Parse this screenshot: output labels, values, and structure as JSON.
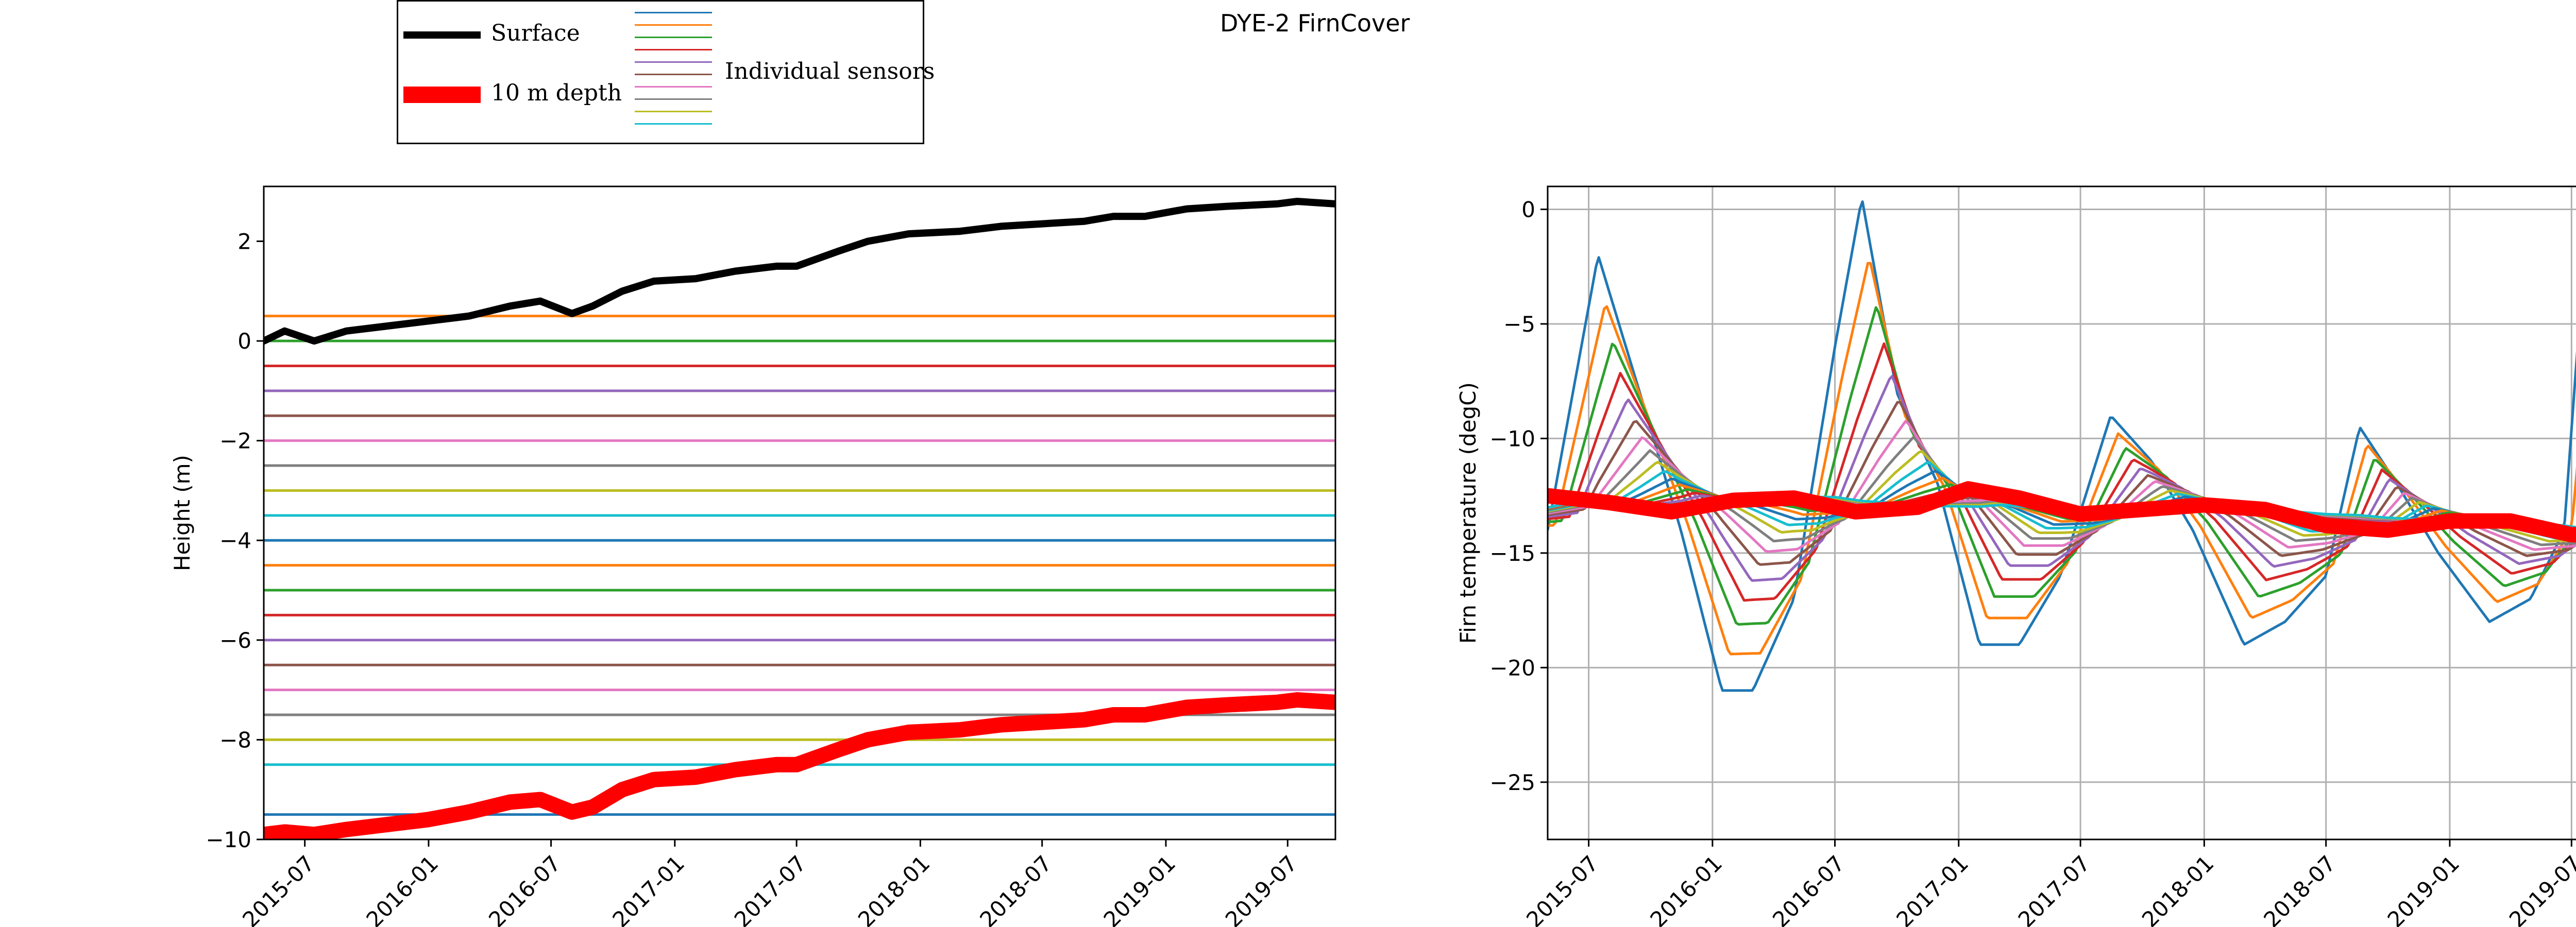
{
  "suptitle": "DYE-2 FirnCover",
  "legend": {
    "surface_label": "Surface",
    "depth_label": "10 m depth",
    "sensors_label": "Individual sensors",
    "surface_color": "#000000",
    "depth_color": "#ff0000",
    "sensor_colors": [
      "#1f77b4",
      "#ff7f0e",
      "#2ca02c",
      "#d62728",
      "#9467bd",
      "#8c564b",
      "#e377c2",
      "#7f7f7f",
      "#bcbd22",
      "#17becf"
    ]
  },
  "chart_data": [
    {
      "type": "line",
      "panel": "left",
      "title": "",
      "xlabel": "",
      "ylabel": "Height (m)",
      "xlim": [
        "2015-05-01",
        "2019-09-10"
      ],
      "ylim": [
        -10,
        3.1
      ],
      "xticks": [
        "2015-07",
        "2016-01",
        "2016-07",
        "2017-01",
        "2017-07",
        "2018-01",
        "2018-07",
        "2019-01",
        "2019-07"
      ],
      "yticks": [
        "−10",
        "−8",
        "−6",
        "−4",
        "−2",
        "0",
        "2"
      ],
      "sensor_depths": [
        0.5,
        0,
        -0.5,
        -1,
        -1.5,
        -2,
        -2.5,
        -3,
        -3.5,
        -4,
        -4.5,
        -5,
        -5.5,
        -6,
        -6.5,
        -7,
        -7.5,
        -8,
        -8.5,
        -9.5
      ],
      "series": [
        {
          "name": "Surface",
          "color": "#000000",
          "x": [
            "2015-05-01",
            "2015-06-01",
            "2015-07-15",
            "2015-09-01",
            "2015-11-01",
            "2016-01-01",
            "2016-03-01",
            "2016-05-01",
            "2016-06-15",
            "2016-08-01",
            "2016-09-01",
            "2016-10-15",
            "2016-12-01",
            "2017-02-01",
            "2017-04-01",
            "2017-06-01",
            "2017-07-01",
            "2017-09-01",
            "2017-10-15",
            "2017-12-15",
            "2018-03-01",
            "2018-05-01",
            "2018-07-01",
            "2018-09-01",
            "2018-10-15",
            "2018-12-01",
            "2019-02-01",
            "2019-04-01",
            "2019-06-15",
            "2019-07-15",
            "2019-09-10"
          ],
          "y": [
            0.0,
            0.2,
            0.0,
            0.2,
            0.3,
            0.4,
            0.5,
            0.7,
            0.8,
            0.55,
            0.7,
            1.0,
            1.2,
            1.25,
            1.4,
            1.5,
            1.5,
            1.8,
            2.0,
            2.15,
            2.2,
            2.3,
            2.35,
            2.4,
            2.5,
            2.5,
            2.65,
            2.7,
            2.75,
            2.8,
            2.75
          ]
        },
        {
          "name": "10 m depth",
          "color": "#ff0000",
          "x": [
            "2015-05-01",
            "2015-06-01",
            "2015-07-15",
            "2015-09-01",
            "2015-11-01",
            "2016-01-01",
            "2016-03-01",
            "2016-05-01",
            "2016-06-15",
            "2016-08-01",
            "2016-09-01",
            "2016-10-15",
            "2016-12-01",
            "2017-02-01",
            "2017-04-01",
            "2017-06-01",
            "2017-07-01",
            "2017-09-01",
            "2017-10-15",
            "2017-12-15",
            "2018-03-01",
            "2018-05-01",
            "2018-07-01",
            "2018-09-01",
            "2018-10-15",
            "2018-12-01",
            "2019-02-01",
            "2019-04-01",
            "2019-06-15",
            "2019-07-15",
            "2019-09-10"
          ],
          "y": [
            -9.9,
            -9.85,
            -9.9,
            -9.8,
            -9.7,
            -9.6,
            -9.45,
            -9.25,
            -9.2,
            -9.45,
            -9.35,
            -9.0,
            -8.8,
            -8.75,
            -8.6,
            -8.5,
            -8.5,
            -8.2,
            -8.0,
            -7.85,
            -7.8,
            -7.7,
            -7.65,
            -7.6,
            -7.5,
            -7.5,
            -7.35,
            -7.3,
            -7.25,
            -7.2,
            -7.25
          ]
        }
      ]
    },
    {
      "type": "line",
      "panel": "right",
      "title": "",
      "xlabel": "",
      "ylabel": "Firn temperature (degC)",
      "xlim": [
        "2015-05-01",
        "2019-09-10"
      ],
      "ylim": [
        -27.5,
        1.0
      ],
      "xticks": [
        "2015-07",
        "2016-01",
        "2016-07",
        "2017-01",
        "2017-07",
        "2018-01",
        "2018-07",
        "2019-01",
        "2019-07"
      ],
      "yticks": [
        "−25",
        "−20",
        "−15",
        "−10",
        "−5",
        "0"
      ],
      "grid": true,
      "sensor_model": {
        "x": [
          "2015-05-01",
          "2015-07-15",
          "2015-09-15",
          "2015-11-15",
          "2016-01-15",
          "2016-03-01",
          "2016-05-01",
          "2016-07-01",
          "2016-08-10",
          "2016-10-01",
          "2016-12-01",
          "2017-02-01",
          "2017-04-01",
          "2017-06-01",
          "2017-08-15",
          "2017-10-15",
          "2017-12-15",
          "2018-03-01",
          "2018-05-01",
          "2018-07-01",
          "2018-08-20",
          "2018-10-15",
          "2018-12-15",
          "2019-03-01",
          "2019-05-01",
          "2019-06-20",
          "2019-07-20",
          "2019-09-10"
        ],
        "surface_temp": [
          -14,
          -2,
          -8,
          -14,
          -21,
          -21,
          -17,
          -6,
          0.5,
          -8,
          -12,
          -19,
          -19,
          -16,
          -9,
          -11,
          -14,
          -19,
          -18,
          -16,
          -9.5,
          -12,
          -15,
          -18,
          -17,
          -14,
          -2,
          -11
        ],
        "mean_temp": [
          -13,
          -12.5,
          -12.8,
          -13.0,
          -13.0,
          -12.8,
          -12.6,
          -12.5,
          -12.6,
          -12.7,
          -12.9,
          -13.1,
          -13.1,
          -13.1,
          -13.0,
          -12.9,
          -13.0,
          -13.1,
          -13.2,
          -13.3,
          -13.3,
          -13.4,
          -13.5,
          -13.6,
          -13.7,
          -13.8,
          -13.9,
          -14.1
        ],
        "num_sensors": 20,
        "attenuation": 0.22,
        "lag_days_per_sensor": 11
      },
      "series": [
        {
          "name": "10 m depth",
          "color": "#ff0000",
          "x": [
            "2015-05-01",
            "2015-08-01",
            "2015-11-01",
            "2016-02-01",
            "2016-05-01",
            "2016-08-01",
            "2016-11-01",
            "2017-01-15",
            "2017-04-01",
            "2017-07-01",
            "2017-10-01",
            "2018-01-01",
            "2018-04-01",
            "2018-07-01",
            "2018-10-01",
            "2019-01-01",
            "2019-04-01",
            "2019-07-01",
            "2019-09-10"
          ],
          "y": [
            -12.5,
            -12.8,
            -13.2,
            -12.7,
            -12.6,
            -13.2,
            -13.0,
            -12.2,
            -12.6,
            -13.3,
            -13.1,
            -12.9,
            -13.1,
            -13.8,
            -14.0,
            -13.6,
            -13.6,
            -14.2,
            -14.2
          ]
        }
      ]
    }
  ]
}
